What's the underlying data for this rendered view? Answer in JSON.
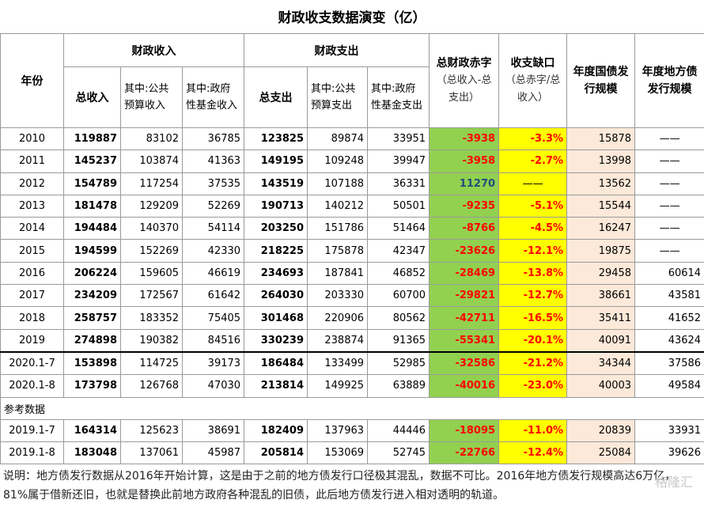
{
  "title": "财政收支数据演变（亿）",
  "headers": {
    "year": "年份",
    "income_group": "财政收入",
    "spend_group": "财政支出",
    "income_total": "总收入",
    "income_public": "其中:公共预算收入",
    "income_fund": "其中:政府性基金收入",
    "spend_total": "总支出",
    "spend_public": "其中:公共预算支出",
    "spend_fund": "其中:政府性基金支出",
    "deficit_title": "总财政赤字",
    "deficit_note": "（总收入-总支出）",
    "gap_title": "收支缺口",
    "gap_note": "（总赤字/总收入）",
    "national": "年度国债发行规模",
    "local": "年度地方债发行规模"
  },
  "rows": [
    {
      "year": "2010",
      "income_total": "119887",
      "income_public": "83102",
      "income_fund": "36785",
      "spend_total": "123825",
      "spend_public": "89874",
      "spend_fund": "33951",
      "deficit": "-3938",
      "gap": "-3.3%",
      "national": "15878",
      "local": "——"
    },
    {
      "year": "2011",
      "income_total": "145237",
      "income_public": "103874",
      "income_fund": "41363",
      "spend_total": "149195",
      "spend_public": "109248",
      "spend_fund": "39947",
      "deficit": "-3958",
      "gap": "-2.7%",
      "national": "13998",
      "local": "——"
    },
    {
      "year": "2012",
      "income_total": "154789",
      "income_public": "117254",
      "income_fund": "37535",
      "spend_total": "143519",
      "spend_public": "107188",
      "spend_fund": "36331",
      "deficit": "11270",
      "gap": "——",
      "national": "13562",
      "local": "——"
    },
    {
      "year": "2013",
      "income_total": "181478",
      "income_public": "129209",
      "income_fund": "52269",
      "spend_total": "190713",
      "spend_public": "140212",
      "spend_fund": "50501",
      "deficit": "-9235",
      "gap": "-5.1%",
      "national": "15544",
      "local": "——"
    },
    {
      "year": "2014",
      "income_total": "194484",
      "income_public": "140370",
      "income_fund": "54114",
      "spend_total": "203250",
      "spend_public": "151786",
      "spend_fund": "51464",
      "deficit": "-8766",
      "gap": "-4.5%",
      "national": "16247",
      "local": "——"
    },
    {
      "year": "2015",
      "income_total": "194599",
      "income_public": "152269",
      "income_fund": "42330",
      "spend_total": "218225",
      "spend_public": "175878",
      "spend_fund": "42347",
      "deficit": "-23626",
      "gap": "-12.1%",
      "national": "19875",
      "local": "——"
    },
    {
      "year": "2016",
      "income_total": "206224",
      "income_public": "159605",
      "income_fund": "46619",
      "spend_total": "234693",
      "spend_public": "187841",
      "spend_fund": "46852",
      "deficit": "-28469",
      "gap": "-13.8%",
      "national": "29458",
      "local": "60614"
    },
    {
      "year": "2017",
      "income_total": "234209",
      "income_public": "172567",
      "income_fund": "61642",
      "spend_total": "264030",
      "spend_public": "203330",
      "spend_fund": "60700",
      "deficit": "-29821",
      "gap": "-12.7%",
      "national": "38661",
      "local": "43581"
    },
    {
      "year": "2018",
      "income_total": "258757",
      "income_public": "183352",
      "income_fund": "75405",
      "spend_total": "301468",
      "spend_public": "220906",
      "spend_fund": "80562",
      "deficit": "-42711",
      "gap": "-16.5%",
      "national": "35411",
      "local": "41652"
    },
    {
      "year": "2019",
      "income_total": "274898",
      "income_public": "190382",
      "income_fund": "84516",
      "spend_total": "330239",
      "spend_public": "238874",
      "spend_fund": "91365",
      "deficit": "-55341",
      "gap": "-20.1%",
      "national": "40091",
      "local": "43624"
    },
    {
      "year": "2020.1-7",
      "income_total": "153898",
      "income_public": "114725",
      "income_fund": "39173",
      "spend_total": "186484",
      "spend_public": "133499",
      "spend_fund": "52985",
      "deficit": "-32586",
      "gap": "-21.2%",
      "national": "34344",
      "local": "37586"
    },
    {
      "year": "2020.1-8",
      "income_total": "173798",
      "income_public": "126768",
      "income_fund": "47030",
      "spend_total": "213814",
      "spend_public": "149925",
      "spend_fund": "63889",
      "deficit": "-40016",
      "gap": "-23.0%",
      "national": "40003",
      "local": "49584"
    }
  ],
  "ref_label": "参考数据",
  "ref_rows": [
    {
      "year": "2019.1-7",
      "income_total": "164314",
      "income_public": "125623",
      "income_fund": "38691",
      "spend_total": "182409",
      "spend_public": "137963",
      "spend_fund": "44446",
      "deficit": "-18095",
      "gap": "-11.0%",
      "national": "20839",
      "local": "33931"
    },
    {
      "year": "2019.1-8",
      "income_total": "183048",
      "income_public": "137061",
      "income_fund": "45987",
      "spend_total": "205814",
      "spend_public": "153069",
      "spend_fund": "52745",
      "deficit": "-22766",
      "gap": "-12.4%",
      "national": "25084",
      "local": "39626"
    }
  ],
  "note": "说明：地方债发行数据从2016年开始计算，这是由于之前的地方债发行口径极其混乱，数据不可比。2016年地方债发行规模高达6万亿，81%属于借新还旧，也就是替换此前地方政府各种混乱的旧债，此后地方债发行进入相对透明的轨道。",
  "watermark": "格隆汇"
}
